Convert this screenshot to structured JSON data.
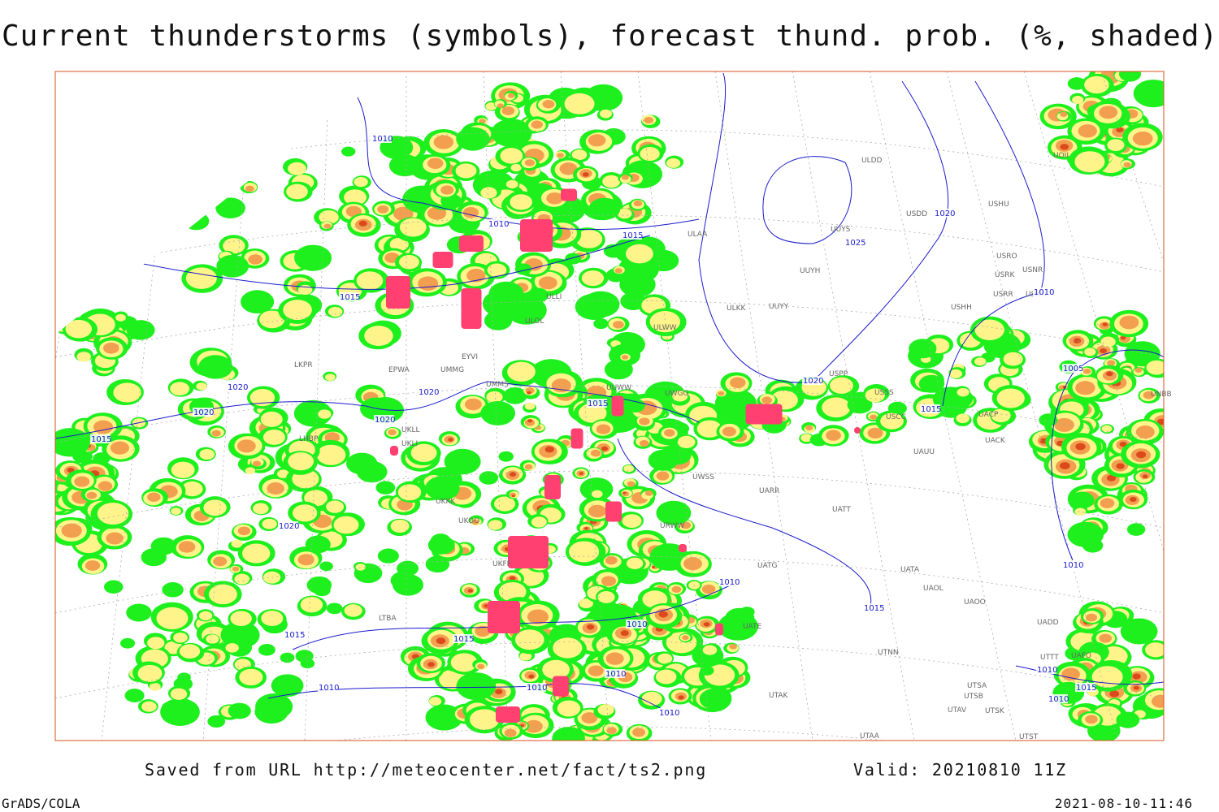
{
  "title": "Current thunderstorms (symbols), forecast thund. prob. (%, shaded)",
  "footer": {
    "source": "Saved from URL http://meteocenter.net/fact/ts2.png",
    "valid": "Valid: 20210810 11Z",
    "software": "GrADS/COLA",
    "timestamp": "2021-08-10-11:46"
  },
  "station_labels": [
    "ULDD",
    "USDD",
    "USHU",
    "UUYS",
    "ULAA",
    "USRO",
    "USRK",
    "USNR",
    "UUYH",
    "USRR",
    "USNN",
    "ULKK",
    "UUYY",
    "USHH",
    "ULOL",
    "ULWW",
    "ULLI",
    "USPP",
    "USSS",
    "USCC",
    "UACP",
    "UACK",
    "UAUU",
    "UWSS",
    "UARR",
    "UATT",
    "UATG",
    "UATA",
    "UAOL",
    "UAOO",
    "UADD",
    "UTNN",
    "UTSA",
    "UTSB",
    "UTAK",
    "UTAV",
    "UTSK",
    "UTST",
    "UTAA",
    "UMMG",
    "UMMS",
    "UKLL",
    "UKLI",
    "UKKK",
    "UKOO",
    "UKFF",
    "URWW",
    "LKPR",
    "EPWA",
    "LHBP",
    "LTBA",
    "UATE",
    "UUWW",
    "UWGG",
    "EYVI",
    "UOII",
    "UNBB",
    "UTTT",
    "UAFO"
  ],
  "isobar_labels": [
    "1010",
    "1010",
    "1015",
    "1015",
    "1020",
    "1020",
    "1020",
    "1020",
    "1015",
    "1020",
    "1015",
    "1010",
    "1005",
    "1020",
    "1025",
    "1010",
    "1020",
    "1015",
    "1015",
    "1010",
    "1010",
    "1015",
    "1015",
    "1010",
    "1010",
    "1010",
    "1010",
    "1010",
    "1015",
    "1010"
  ]
}
